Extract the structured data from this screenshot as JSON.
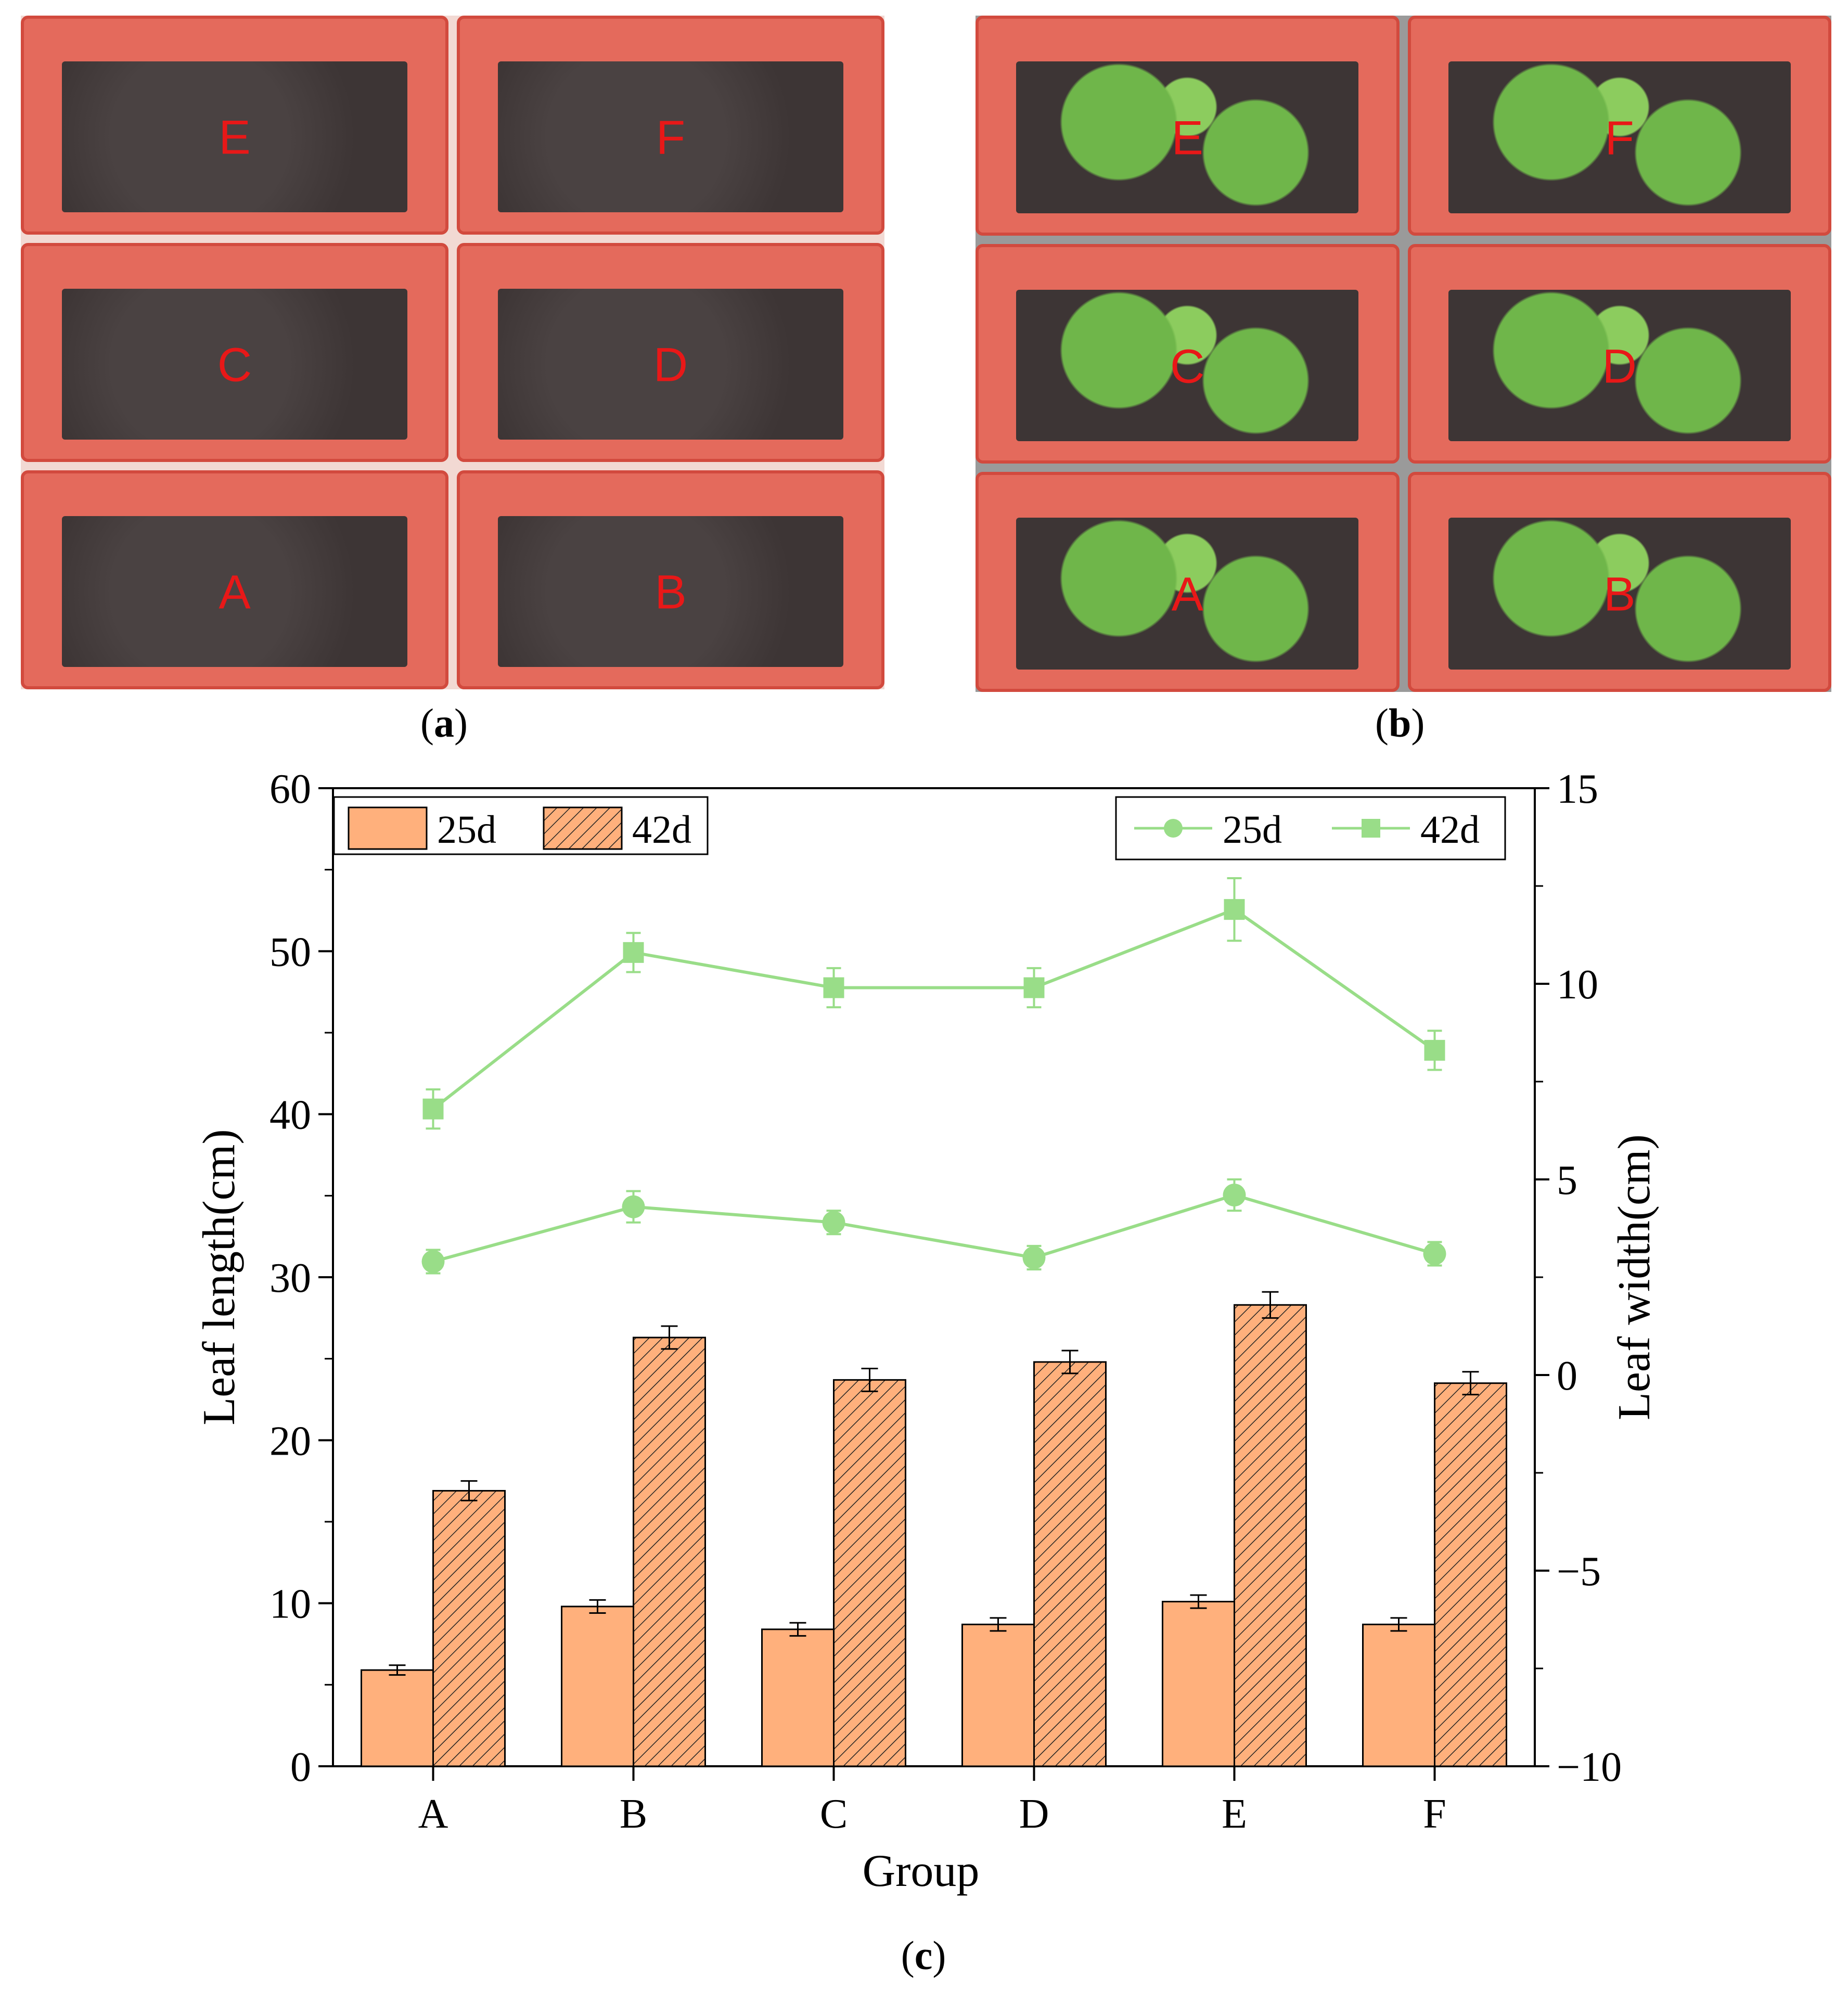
{
  "panels": {
    "a": {
      "caption_label": "a",
      "trays": [
        "E",
        "F",
        "C",
        "D",
        "A",
        "B"
      ]
    },
    "b": {
      "caption_label": "b",
      "trays": [
        "E",
        "F",
        "C",
        "D",
        "A",
        "B"
      ]
    },
    "c": {
      "caption_label": "c"
    }
  },
  "colors": {
    "bar_fill": "#ffb07c",
    "line": "#99dd88",
    "tray": "#e46a5c",
    "tray_edge": "#d24a3e",
    "soil": "#3d3535",
    "plants": "#6fb64a",
    "tray_letter": "#e81818"
  },
  "chart_data": {
    "type": "bar",
    "categories": [
      "A",
      "B",
      "C",
      "D",
      "E",
      "F"
    ],
    "xlabel": "Group",
    "ylabel": "Leaf length(cm)",
    "y2label": "Leaf width(cm)",
    "ylim": [
      0,
      60
    ],
    "y2lim": [
      -10,
      15
    ],
    "yticks": [
      0,
      10,
      20,
      30,
      40,
      50,
      60
    ],
    "y2ticks": [
      -10,
      -5,
      0,
      5,
      10,
      15
    ],
    "y2tick_labels": [
      "−10",
      "−5",
      "0",
      "5",
      "10",
      "15"
    ],
    "bar_series": [
      {
        "name": "25d",
        "pattern": "solid",
        "values": [
          5.9,
          9.8,
          8.4,
          8.7,
          10.1,
          8.7
        ],
        "errors": [
          0.3,
          0.4,
          0.4,
          0.4,
          0.4,
          0.4
        ]
      },
      {
        "name": "42d",
        "pattern": "hatched",
        "values": [
          16.9,
          26.3,
          23.7,
          24.8,
          28.3,
          23.5
        ],
        "errors": [
          0.6,
          0.7,
          0.7,
          0.7,
          0.8,
          0.7
        ]
      }
    ],
    "line_series": [
      {
        "name": "25d",
        "marker": "circle",
        "values": [
          2.9,
          4.3,
          3.9,
          3.0,
          4.6,
          3.1
        ],
        "errors": [
          0.3,
          0.4,
          0.3,
          0.3,
          0.4,
          0.3
        ]
      },
      {
        "name": "42d",
        "marker": "square",
        "values": [
          6.8,
          10.8,
          9.9,
          9.9,
          11.9,
          8.3
        ],
        "errors": [
          0.5,
          0.5,
          0.5,
          0.5,
          0.8,
          0.5
        ]
      }
    ],
    "legend_bars": "top-left",
    "legend_lines": "top-right",
    "grid": false
  }
}
